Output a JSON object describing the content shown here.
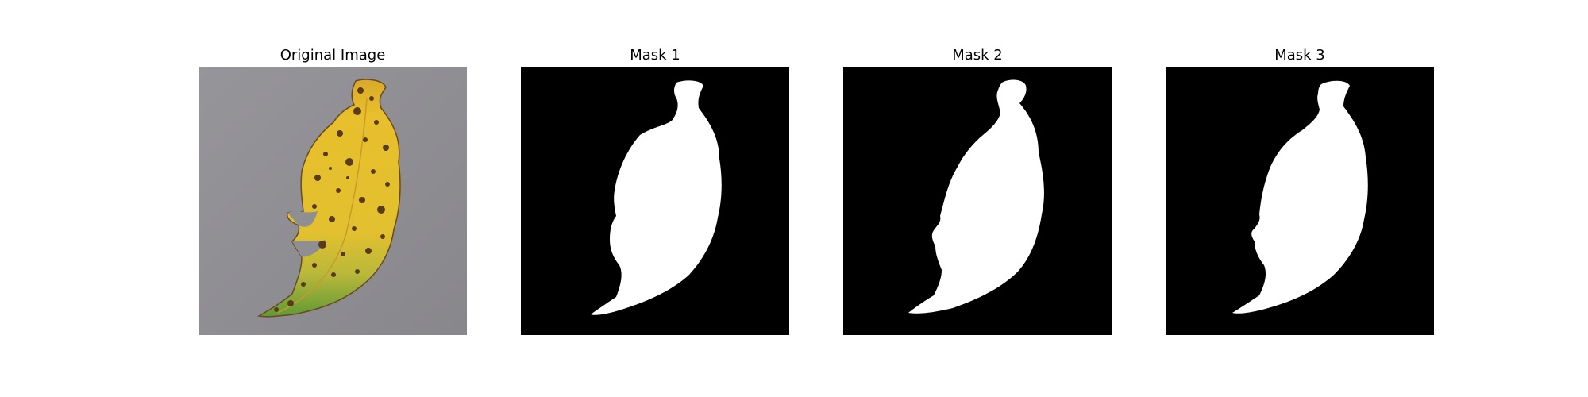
{
  "figure": {
    "panels": [
      {
        "title": "Original Image",
        "kind": "photo"
      },
      {
        "title": "Mask 1",
        "kind": "mask"
      },
      {
        "title": "Mask 2",
        "kind": "mask"
      },
      {
        "title": "Mask 3",
        "kind": "mask"
      }
    ]
  },
  "colors": {
    "background": "#ffffff",
    "mask_background": "#000000",
    "mask_foreground": "#ffffff",
    "photo_background": "#8f8e93",
    "leaf_yellow": "#e1b62a",
    "leaf_green": "#6ea23a",
    "leaf_spots": "#5a3a1c"
  }
}
